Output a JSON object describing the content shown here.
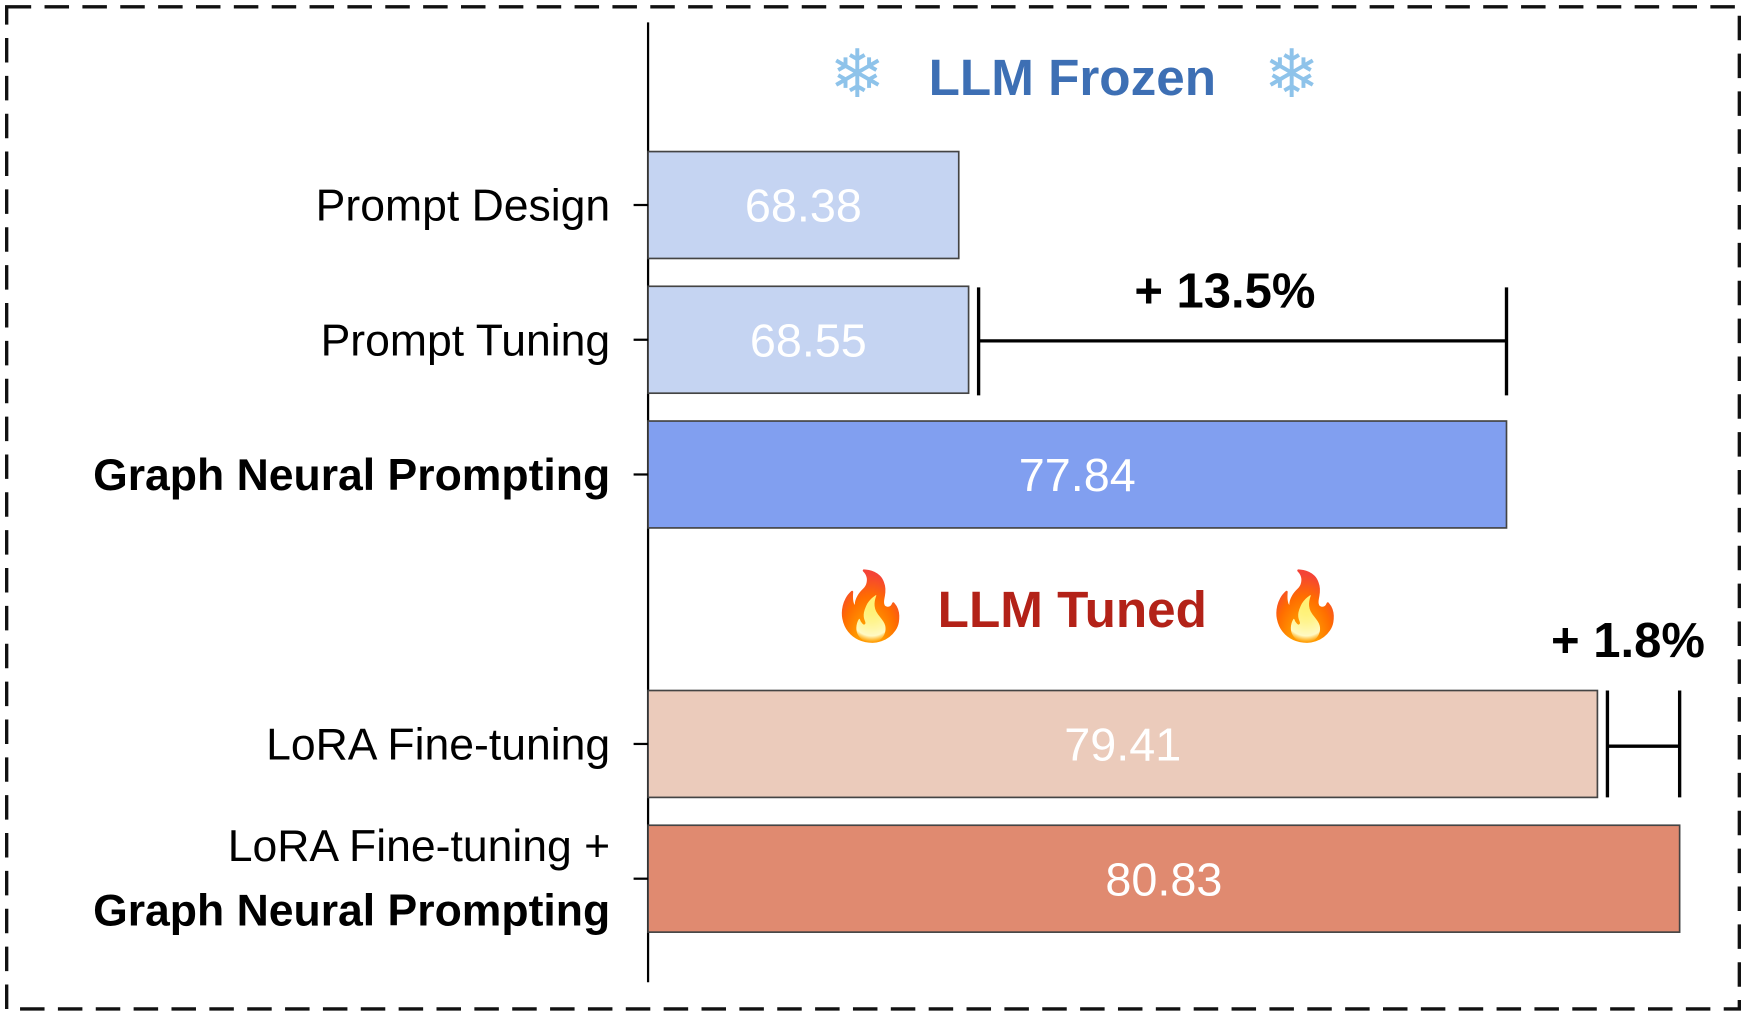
{
  "chart_data": {
    "type": "bar",
    "orientation": "horizontal",
    "xlim": [
      63,
      82
    ],
    "grid": false,
    "groups": [
      {
        "title": "LLM Frozen",
        "icon": "snowflake-icon",
        "color": "#3d6fb4"
      },
      {
        "title": "LLM Tuned",
        "icon": "fire-icon",
        "color": "#b32218"
      }
    ],
    "categories": [
      {
        "label": "Prompt Design",
        "label2": "",
        "bold": false
      },
      {
        "label": "Prompt Tuning",
        "label2": "",
        "bold": false
      },
      {
        "label": "Graph Neural Prompting",
        "label2": "",
        "bold": true
      },
      {
        "label": "LoRA Fine-tuning",
        "label2": "",
        "bold": false
      },
      {
        "label": "LoRA Fine-tuning +",
        "label2": "Graph Neural Prompting",
        "bold": false
      }
    ],
    "values": [
      68.38,
      68.55,
      77.84,
      79.41,
      80.83
    ],
    "value_labels": [
      "68.38",
      "68.55",
      "77.84",
      "79.41",
      "80.83"
    ],
    "colors": [
      "#c5d4f2",
      "#c5d4f2",
      "#819ff0",
      "#ebcbbb",
      "#e08a70"
    ],
    "annotations": [
      {
        "text": "+ 13.5%",
        "from": 68.55,
        "to": 77.84
      },
      {
        "text": "+ 1.8%",
        "from": 79.41,
        "to": 80.83
      }
    ]
  }
}
